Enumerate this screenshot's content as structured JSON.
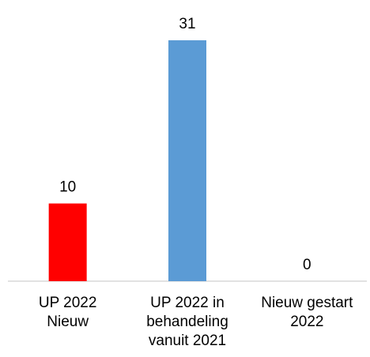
{
  "chart_data": {
    "type": "bar",
    "categories": [
      "UP 2022\nNieuw",
      "UP 2022 in\nbehandeling\nvanuit 2021",
      "Nieuw gestart\n2022"
    ],
    "values": [
      10,
      31,
      0
    ],
    "colors": [
      "#ff0000",
      "#5b9bd5",
      "#5b9bd5"
    ],
    "ylim": [
      0,
      31
    ],
    "grid": false
  }
}
